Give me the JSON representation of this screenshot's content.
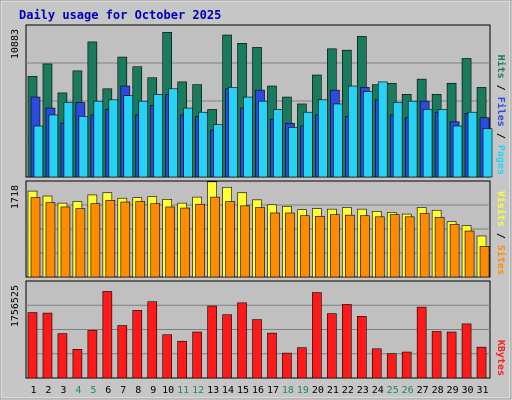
{
  "chart_data": [
    {
      "type": "bar",
      "title": "Daily usage for October 2025",
      "panel": "hits-files-pages",
      "ymax_label": "10883",
      "ylim": [
        0,
        10883
      ],
      "right_label": {
        "parts": [
          "Pages",
          "Files",
          "Hits"
        ],
        "separator": " / "
      },
      "categories": [
        "1",
        "2",
        "3",
        "4",
        "5",
        "6",
        "7",
        "8",
        "9",
        "10",
        "11",
        "12",
        "13",
        "14",
        "15",
        "16",
        "17",
        "18",
        "19",
        "20",
        "21",
        "22",
        "23",
        "24",
        "25",
        "26",
        "27",
        "28",
        "29",
        "30",
        "31"
      ],
      "weekend_days": [
        "4",
        "5",
        "11",
        "12",
        "18",
        "19",
        "25",
        "26"
      ],
      "series": [
        {
          "name": "Hits",
          "color": "#1a7a5e",
          "values": [
            7300,
            8200,
            6100,
            7700,
            9800,
            6400,
            8700,
            8000,
            7200,
            10500,
            6900,
            6700,
            4900,
            10300,
            9700,
            9400,
            6600,
            5800,
            5300,
            7400,
            9300,
            9200,
            10200,
            6700,
            6800,
            6000,
            7100,
            6000,
            6800,
            8600,
            6500
          ]
        },
        {
          "name": "Files",
          "color": "#2e49e0",
          "values": [
            5800,
            5000,
            3900,
            5400,
            4500,
            4900,
            6600,
            4500,
            5200,
            6000,
            4500,
            4400,
            3400,
            6400,
            5000,
            6300,
            4200,
            3900,
            3700,
            4500,
            6300,
            4400,
            6500,
            5600,
            4500,
            4300,
            5500,
            4700,
            4000,
            4600,
            4300
          ]
        },
        {
          "name": "Pages",
          "color": "#26d3f7",
          "values": [
            3700,
            4500,
            5400,
            4400,
            5500,
            5600,
            5900,
            5500,
            6000,
            6400,
            5000,
            4700,
            3800,
            6500,
            5800,
            5500,
            4900,
            3600,
            4700,
            5600,
            5300,
            6600,
            6200,
            6900,
            5400,
            5500,
            4900,
            4900,
            3700,
            4700,
            3500
          ]
        }
      ]
    },
    {
      "type": "bar",
      "panel": "visits-sites",
      "ymax_label": "1718",
      "ylim": [
        0,
        1718
      ],
      "right_label": {
        "parts": [
          "Sites",
          "Visits"
        ],
        "separator": " / "
      },
      "series": [
        {
          "name": "Visits",
          "color": "#ffff33",
          "values": [
            1570,
            1480,
            1350,
            1380,
            1500,
            1540,
            1440,
            1450,
            1470,
            1420,
            1350,
            1460,
            1740,
            1640,
            1540,
            1410,
            1320,
            1290,
            1230,
            1250,
            1240,
            1270,
            1240,
            1200,
            1180,
            1150,
            1270,
            1220,
            1010,
            940,
            750
          ]
        },
        {
          "name": "Sites",
          "color": "#ff8c00",
          "values": [
            1450,
            1360,
            1280,
            1250,
            1340,
            1400,
            1370,
            1380,
            1340,
            1280,
            1260,
            1330,
            1460,
            1380,
            1300,
            1270,
            1170,
            1170,
            1120,
            1110,
            1140,
            1130,
            1120,
            1100,
            1140,
            1100,
            1160,
            1090,
            960,
            840,
            560
          ]
        }
      ]
    },
    {
      "type": "bar",
      "panel": "kbytes",
      "ymax_label": "1756525",
      "ylim": [
        0,
        1756525
      ],
      "right_label": {
        "parts": [
          "KBytes"
        ],
        "separator": ""
      },
      "series": [
        {
          "name": "KBytes",
          "color": "#ff1a1a",
          "values": [
            1210000,
            1200000,
            820000,
            530000,
            880000,
            1600000,
            970000,
            1250000,
            1410000,
            800000,
            680000,
            850000,
            1330000,
            1170000,
            1390000,
            1080000,
            830000,
            460000,
            560000,
            1580000,
            1190000,
            1360000,
            1140000,
            540000,
            450000,
            480000,
            1310000,
            860000,
            850000,
            1000000,
            570000
          ]
        }
      ]
    }
  ]
}
